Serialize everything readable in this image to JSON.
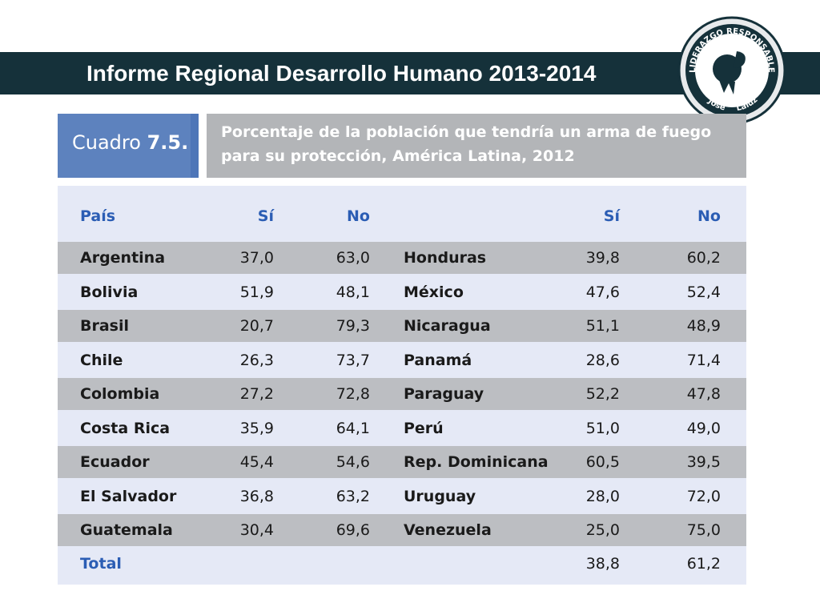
{
  "header": {
    "title": "Informe Regional Desarrollo Humano 2013-2014",
    "logo": {
      "icon": "liderazgo-responsable-logo",
      "text_top": "LIDERAZGO RESPONSABLE",
      "text_bottom_left": "José",
      "text_bottom_right": "Laluz"
    }
  },
  "cuadro": {
    "label": "Cuadro",
    "number": "7.5."
  },
  "caption": "Porcentaje de la población que tendría un arma de fuego para su protección, América Latina, 2012",
  "table": {
    "headers": {
      "pais": "País",
      "si": "Sí",
      "no": "No",
      "si2": "Sí",
      "no2": "No"
    },
    "rows": [
      {
        "p1": "Argentina",
        "s1": "37,0",
        "n1": "63,0",
        "p2": "Honduras",
        "s2": "39,8",
        "n2": "60,2"
      },
      {
        "p1": "Bolivia",
        "s1": "51,9",
        "n1": "48,1",
        "p2": "México",
        "s2": "47,6",
        "n2": "52,4"
      },
      {
        "p1": "Brasil",
        "s1": "20,7",
        "n1": "79,3",
        "p2": "Nicaragua",
        "s2": "51,1",
        "n2": "48,9"
      },
      {
        "p1": "Chile",
        "s1": "26,3",
        "n1": "73,7",
        "p2": "Panamá",
        "s2": "28,6",
        "n2": "71,4"
      },
      {
        "p1": "Colombia",
        "s1": "27,2",
        "n1": "72,8",
        "p2": "Paraguay",
        "s2": "52,2",
        "n2": "47,8"
      },
      {
        "p1": "Costa Rica",
        "s1": "35,9",
        "n1": "64,1",
        "p2": "Perú",
        "s2": "51,0",
        "n2": "49,0"
      },
      {
        "p1": "Ecuador",
        "s1": "45,4",
        "n1": "54,6",
        "p2": "Rep. Dominicana",
        "s2": "60,5",
        "n2": "39,5"
      },
      {
        "p1": "El Salvador",
        "s1": "36,8",
        "n1": "63,2",
        "p2": "Uruguay",
        "s2": "28,0",
        "n2": "72,0"
      },
      {
        "p1": "Guatemala",
        "s1": "30,4",
        "n1": "69,6",
        "p2": "Venezuela",
        "s2": "25,0",
        "n2": "75,0"
      }
    ],
    "total": {
      "label": "Total",
      "si": "38,8",
      "no": "61,2"
    }
  }
}
